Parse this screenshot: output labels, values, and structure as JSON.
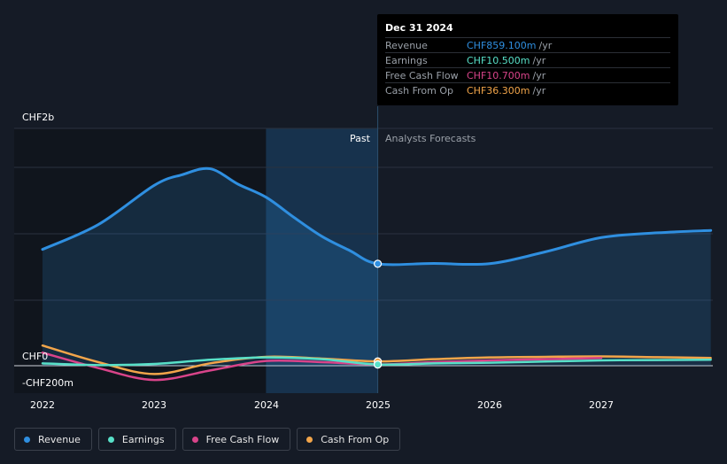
{
  "chart_data": {
    "type": "line",
    "y_unit": "CHF m",
    "ylim": [
      -200,
      2000
    ],
    "y_ticks": [
      {
        "value": 2000,
        "label": "CHF2b"
      },
      {
        "value": 0,
        "label": "CHF0"
      },
      {
        "value": -200,
        "label": "-CHF200m"
      }
    ],
    "x_ticks": [
      {
        "value": 2022,
        "label": "2022"
      },
      {
        "value": 2023,
        "label": "2023"
      },
      {
        "value": 2024,
        "label": "2024"
      },
      {
        "value": 2025,
        "label": "2025"
      },
      {
        "value": 2026,
        "label": "2026"
      },
      {
        "value": 2027,
        "label": "2027"
      }
    ],
    "xlim": [
      2021.75,
      2027.98
    ],
    "divider_x": 2025.0,
    "highlight_start_x": 2024.0,
    "past_label": "Past",
    "forecast_label": "Analysts Forecasts",
    "series": [
      {
        "name": "Revenue",
        "color": "#2f8fe0",
        "fill": true,
        "points": [
          [
            2022.0,
            980
          ],
          [
            2022.5,
            1190
          ],
          [
            2023.0,
            1520
          ],
          [
            2023.25,
            1610
          ],
          [
            2023.5,
            1660
          ],
          [
            2023.75,
            1530
          ],
          [
            2024.0,
            1420
          ],
          [
            2024.25,
            1250
          ],
          [
            2024.5,
            1090
          ],
          [
            2024.75,
            970
          ],
          [
            2025.0,
            859
          ],
          [
            2025.5,
            862
          ],
          [
            2026.0,
            860
          ],
          [
            2026.5,
            960
          ],
          [
            2027.0,
            1080
          ],
          [
            2027.5,
            1120
          ],
          [
            2027.98,
            1140
          ]
        ]
      },
      {
        "name": "Earnings",
        "color": "#58e0c8",
        "fill": false,
        "points": [
          [
            2022.0,
            20
          ],
          [
            2022.5,
            5
          ],
          [
            2023.0,
            15
          ],
          [
            2023.5,
            50
          ],
          [
            2024.0,
            70
          ],
          [
            2024.5,
            55
          ],
          [
            2025.0,
            10.5
          ],
          [
            2025.5,
            20
          ],
          [
            2026.0,
            25
          ],
          [
            2026.5,
            35
          ],
          [
            2027.0,
            45
          ],
          [
            2027.5,
            48
          ],
          [
            2027.98,
            50
          ]
        ]
      },
      {
        "name": "Free Cash Flow",
        "color": "#d9448a",
        "fill": false,
        "points": [
          [
            2022.0,
            110
          ],
          [
            2022.5,
            -20
          ],
          [
            2023.0,
            -120
          ],
          [
            2023.5,
            -40
          ],
          [
            2024.0,
            40
          ],
          [
            2024.5,
            30
          ],
          [
            2025.0,
            10.7
          ],
          [
            2025.5,
            30
          ],
          [
            2026.0,
            45
          ],
          [
            2026.5,
            55
          ],
          [
            2027.0,
            65
          ]
        ]
      },
      {
        "name": "Cash From Op",
        "color": "#f2a54a",
        "fill": false,
        "points": [
          [
            2022.0,
            170
          ],
          [
            2022.5,
            30
          ],
          [
            2023.0,
            -70
          ],
          [
            2023.5,
            20
          ],
          [
            2024.0,
            75
          ],
          [
            2024.5,
            60
          ],
          [
            2025.0,
            36.3
          ],
          [
            2025.5,
            55
          ],
          [
            2026.0,
            70
          ],
          [
            2026.5,
            75
          ],
          [
            2027.0,
            78
          ],
          [
            2027.5,
            72
          ],
          [
            2027.98,
            65
          ]
        ]
      }
    ]
  },
  "tooltip": {
    "date": "Dec 31 2024",
    "rows": [
      {
        "name": "Revenue",
        "value": "CHF859.100m",
        "unit": "/yr",
        "color": "#2f8fe0"
      },
      {
        "name": "Earnings",
        "value": "CHF10.500m",
        "unit": "/yr",
        "color": "#58e0c8"
      },
      {
        "name": "Free Cash Flow",
        "value": "CHF10.700m",
        "unit": "/yr",
        "color": "#d9448a"
      },
      {
        "name": "Cash From Op",
        "value": "CHF36.300m",
        "unit": "/yr",
        "color": "#f2a54a"
      }
    ]
  },
  "legend": [
    {
      "label": "Revenue",
      "color": "#2f8fe0"
    },
    {
      "label": "Earnings",
      "color": "#58e0c8"
    },
    {
      "label": "Free Cash Flow",
      "color": "#d9448a"
    },
    {
      "label": "Cash From Op",
      "color": "#f2a54a"
    }
  ]
}
